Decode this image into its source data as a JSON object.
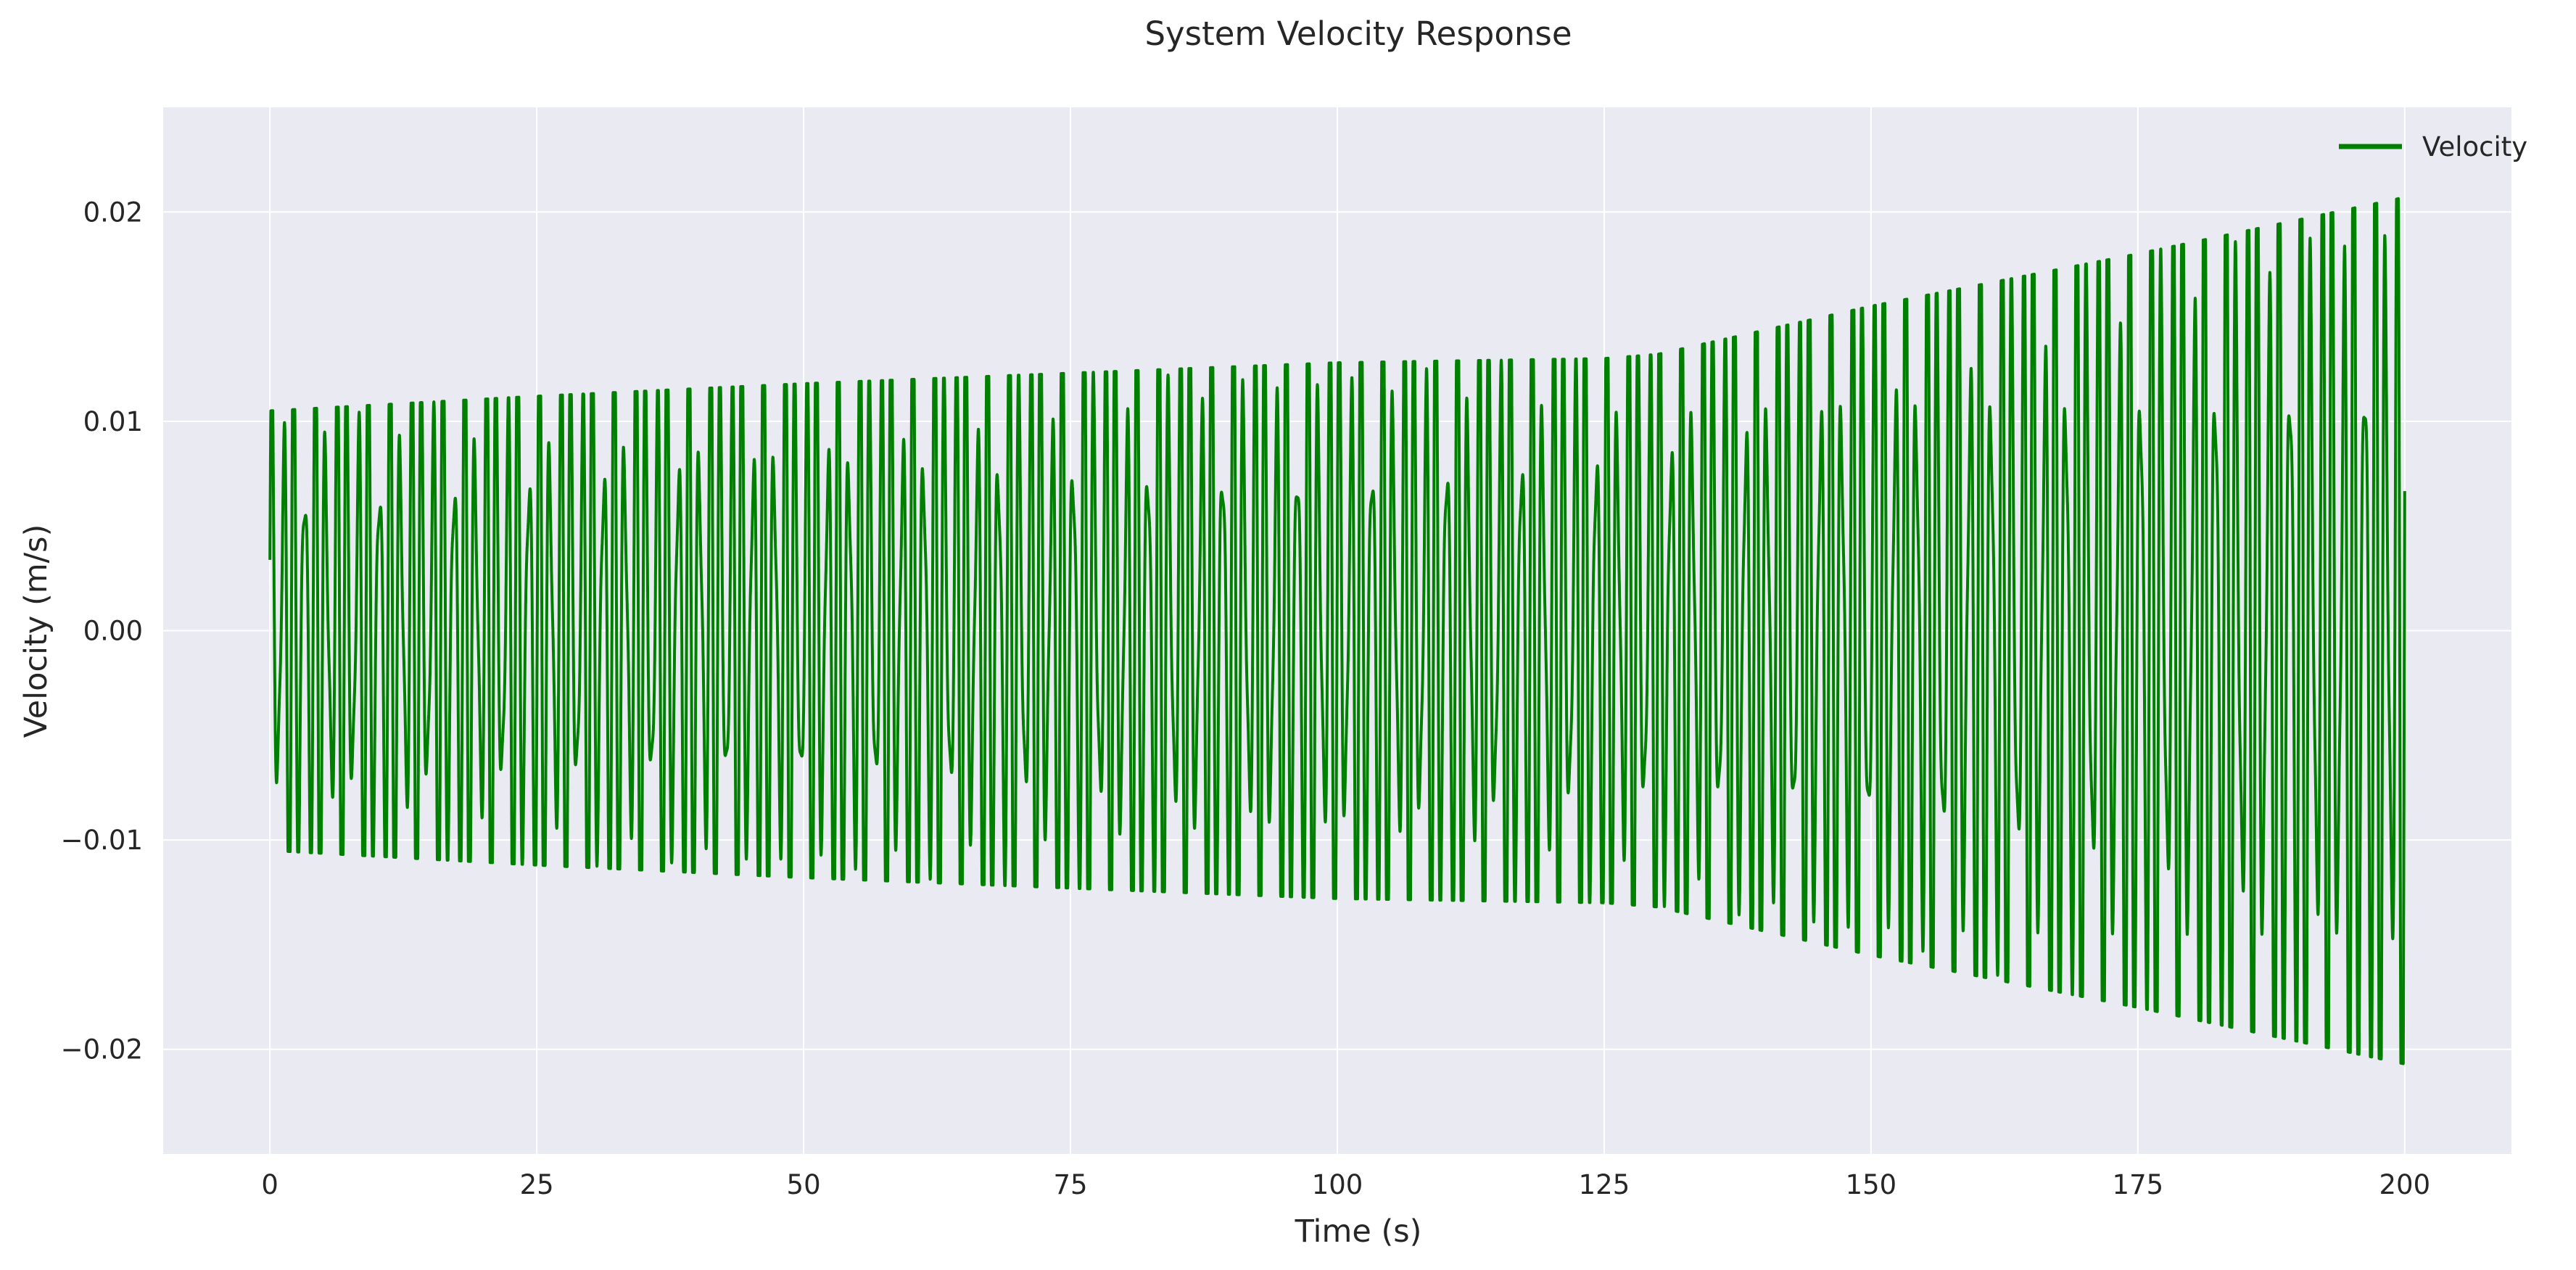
{
  "chart_data": {
    "type": "line",
    "title": "System Velocity Response",
    "xlabel": "Time (s)",
    "ylabel": "Velocity (m/s)",
    "xlim": [
      -10,
      210
    ],
    "ylim": [
      -0.025,
      0.025
    ],
    "xticks": [
      0,
      25,
      50,
      75,
      100,
      125,
      150,
      175,
      200
    ],
    "xtick_labels": [
      "0",
      "25",
      "50",
      "75",
      "100",
      "125",
      "150",
      "175",
      "200"
    ],
    "yticks": [
      -0.02,
      -0.01,
      0.0,
      0.01,
      0.02
    ],
    "ytick_labels": [
      "−0.02",
      "−0.01",
      "0.00",
      "0.01",
      "0.02"
    ],
    "grid": true,
    "legend_position": "top-right",
    "colors": {
      "velocity": "#008000",
      "plot_background": "#eaeaf2",
      "grid": "#ffffff"
    },
    "series": [
      {
        "name": "Velocity",
        "oscillation_frequency_hz": 1.0,
        "envelope": {
          "t": [
            0,
            25,
            50,
            75,
            100,
            125,
            130,
            150,
            175,
            200
          ],
          "amplitude": [
            0.0105,
            0.0112,
            0.0118,
            0.0123,
            0.0128,
            0.013,
            0.0132,
            0.0155,
            0.018,
            0.0207
          ]
        }
      }
    ]
  }
}
